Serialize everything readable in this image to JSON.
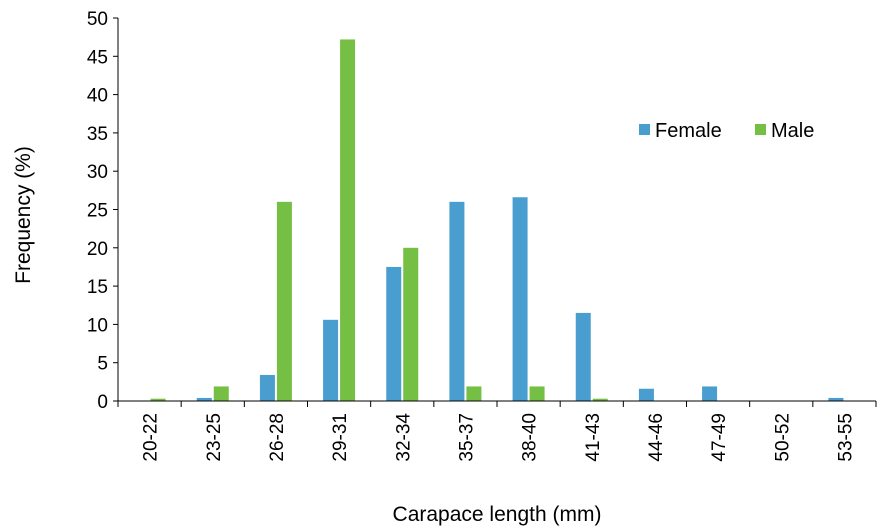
{
  "chart_data": {
    "type": "bar",
    "xlabel": "Carapace length (mm)",
    "ylabel": "Frequency (%)",
    "ylim": [
      0,
      50
    ],
    "yticks": [
      "0",
      "5",
      "10",
      "15",
      "20",
      "25",
      "30",
      "35",
      "40",
      "45",
      "50"
    ],
    "grid": false,
    "legend_position": "top-right",
    "categories": [
      "20-22",
      "23-25",
      "26-28",
      "29-31",
      "32-34",
      "35-37",
      "38-40",
      "41-43",
      "44-46",
      "47-49",
      "50-52",
      "53-55"
    ],
    "series": [
      {
        "name": "Female",
        "color": "#4a9dcf",
        "values": [
          0,
          0.4,
          3.4,
          10.6,
          17.5,
          26.0,
          26.6,
          11.5,
          1.6,
          1.9,
          0,
          0.4
        ]
      },
      {
        "name": "Male",
        "color": "#74bf44",
        "values": [
          0.3,
          1.9,
          26.0,
          47.2,
          20.0,
          1.9,
          1.9,
          0.3,
          0,
          0,
          0,
          0
        ]
      }
    ]
  }
}
